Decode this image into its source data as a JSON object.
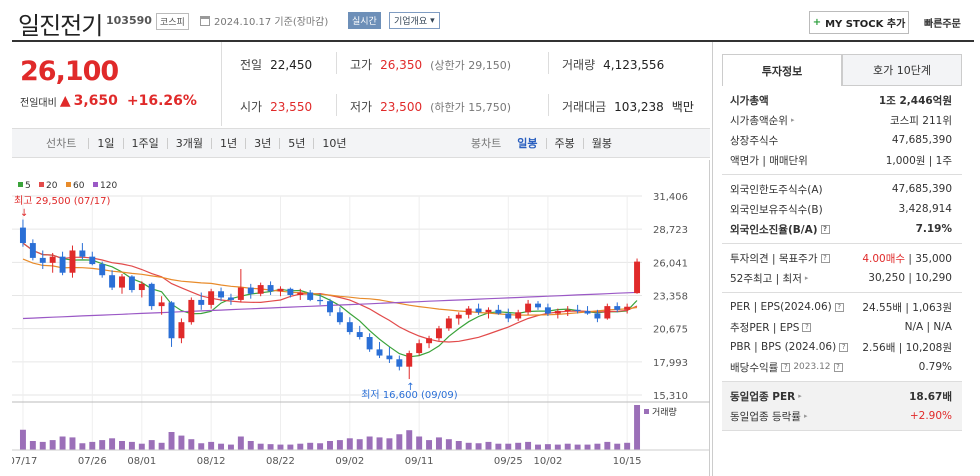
{
  "header": {
    "title": "일진전기",
    "code": "103590",
    "market": "코스피",
    "date": "2024.10.17 기준(장마감)",
    "realtime_label": "실시간",
    "overview_label": "기업개요",
    "mystock_label": "MY STOCK 추가",
    "quick_order_label": "빠른주문"
  },
  "price": {
    "current": "26,100",
    "change_label": "전일대비",
    "change": "3,650",
    "change_pct": "+16.26%"
  },
  "stats": {
    "prev_label": "전일",
    "prev": "22,450",
    "high_label": "고가",
    "high": "26,350",
    "upper_limit": "(상한가 29,150)",
    "volume_label": "거래량",
    "volume": "4,123,556",
    "open_label": "시가",
    "open": "23,550",
    "low_label": "저가",
    "low": "23,500",
    "lower_limit": "(하한가 15,750)",
    "amount_label": "거래대금",
    "amount": "103,238",
    "amount_unit": "백만"
  },
  "period_bar": {
    "line_label": "선차트",
    "line_items": [
      "1일",
      "1주일",
      "3개월",
      "1년",
      "3년",
      "5년",
      "10년"
    ],
    "candle_label": "봉차트",
    "candle_items": [
      "일봉",
      "주봉",
      "월봉"
    ],
    "candle_selected": "일봉"
  },
  "colors": {
    "up": "#e02a2a",
    "down": "#2a6fd6",
    "ma5": "#3aa33a",
    "ma20": "#e24b4b",
    "ma60": "#e88b2a",
    "ma120": "#9b59c6"
  },
  "chart_data": {
    "type": "candlestick",
    "legend": [
      "5",
      "20",
      "60",
      "120"
    ],
    "y_ticks": [
      "31,406",
      "28,723",
      "26,041",
      "23,358",
      "20,675",
      "17,993",
      "15,310"
    ],
    "ylim": [
      15310,
      31406
    ],
    "x_ticks": [
      "07/17",
      "07/26",
      "08/01",
      "08/12",
      "08/22",
      "09/02",
      "09/11",
      "09/25",
      "10/02",
      "10/15"
    ],
    "high_annotation": "최고 29,500 (07/17)",
    "low_annotation": "최저 16,600 (09/09)",
    "volume_label": "거래량",
    "candles": [
      [
        28850,
        29500,
        27300,
        27600
      ],
      [
        27600,
        27900,
        26200,
        26400
      ],
      [
        26400,
        27000,
        25500,
        26000
      ],
      [
        26000,
        26800,
        25200,
        26500
      ],
      [
        26500,
        26900,
        25000,
        25200
      ],
      [
        25200,
        27400,
        24800,
        27000
      ],
      [
        27000,
        27600,
        26300,
        26500
      ],
      [
        26500,
        26900,
        25800,
        25900
      ],
      [
        25900,
        26100,
        24800,
        25000
      ],
      [
        25000,
        25400,
        23800,
        24000
      ],
      [
        24000,
        25100,
        23500,
        24900
      ],
      [
        24900,
        25000,
        23600,
        23800
      ],
      [
        23800,
        24500,
        23200,
        24300
      ],
      [
        24300,
        24400,
        22200,
        22500
      ],
      [
        22500,
        23300,
        21800,
        22800
      ],
      [
        22800,
        22900,
        19200,
        19900
      ],
      [
        19900,
        21500,
        19500,
        21200
      ],
      [
        21200,
        23200,
        21000,
        23000
      ],
      [
        23000,
        23600,
        22200,
        22600
      ],
      [
        22600,
        23900,
        22300,
        23700
      ],
      [
        23700,
        24000,
        22900,
        23200
      ],
      [
        23200,
        23500,
        22600,
        23000
      ],
      [
        23000,
        25500,
        22800,
        24000
      ],
      [
        24000,
        24300,
        23100,
        23500
      ],
      [
        23500,
        24400,
        23300,
        24200
      ],
      [
        24200,
        24500,
        23400,
        23700
      ],
      [
        23700,
        24100,
        23300,
        23900
      ],
      [
        23900,
        24000,
        23200,
        23400
      ],
      [
        23400,
        23900,
        23000,
        23600
      ],
      [
        23600,
        23800,
        22900,
        23000
      ],
      [
        23000,
        23500,
        22600,
        22900
      ],
      [
        22900,
        23100,
        21700,
        22000
      ],
      [
        22000,
        22400,
        21000,
        21200
      ],
      [
        21200,
        21600,
        20200,
        20400
      ],
      [
        20400,
        20900,
        19800,
        20000
      ],
      [
        20000,
        20300,
        18800,
        19000
      ],
      [
        19000,
        19600,
        18300,
        18500
      ],
      [
        18500,
        19200,
        17900,
        18200
      ],
      [
        18200,
        18500,
        17300,
        17600
      ],
      [
        17600,
        18900,
        16600,
        18700
      ],
      [
        18700,
        19800,
        18500,
        19500
      ],
      [
        19500,
        20100,
        19100,
        19900
      ],
      [
        19900,
        20900,
        19700,
        20700
      ],
      [
        20700,
        21700,
        20500,
        21500
      ],
      [
        21500,
        22000,
        21000,
        21800
      ],
      [
        21800,
        22500,
        21500,
        22300
      ],
      [
        22300,
        22700,
        21800,
        22000
      ],
      [
        22000,
        22400,
        21500,
        22200
      ],
      [
        22200,
        22600,
        21800,
        21900
      ],
      [
        21900,
        22300,
        21200,
        21500
      ],
      [
        21500,
        22200,
        21300,
        22000
      ],
      [
        22000,
        23000,
        21800,
        22700
      ],
      [
        22700,
        22900,
        22200,
        22400
      ],
      [
        22400,
        22700,
        21700,
        21900
      ],
      [
        21900,
        22300,
        21500,
        22100
      ],
      [
        22100,
        22500,
        21700,
        22200
      ],
      [
        22200,
        22600,
        21900,
        22100
      ],
      [
        22100,
        22500,
        21800,
        21900
      ],
      [
        21900,
        22200,
        21200,
        21500
      ],
      [
        21500,
        22700,
        21400,
        22500
      ],
      [
        22500,
        22800,
        22000,
        22200
      ],
      [
        22200,
        22700,
        21900,
        22450
      ],
      [
        23550,
        26350,
        23500,
        26100
      ]
    ],
    "volumes": [
      45,
      20,
      18,
      22,
      30,
      28,
      15,
      18,
      22,
      26,
      20,
      18,
      14,
      22,
      16,
      40,
      32,
      24,
      15,
      18,
      14,
      12,
      30,
      20,
      14,
      13,
      12,
      12,
      14,
      16,
      15,
      20,
      22,
      26,
      24,
      30,
      28,
      26,
      35,
      44,
      30,
      22,
      28,
      24,
      20,
      16,
      15,
      18,
      14,
      14,
      16,
      18,
      12,
      13,
      12,
      14,
      12,
      12,
      14,
      18,
      14,
      16,
      100
    ]
  },
  "panel": {
    "tab_invest": "투자정보",
    "tab_order": "호가 10단계",
    "market_cap_label": "시가총액",
    "market_cap": "1조 2,446억원",
    "cap_rank_label": "시가총액순위",
    "cap_rank": "코스피 211위",
    "shares_label": "상장주식수",
    "shares": "47,685,390",
    "par_label": "액면가 | 매매단위",
    "par": "1,000원 | 1주",
    "foreign_limit_label": "외국인한도주식수(A)",
    "foreign_limit": "47,685,390",
    "foreign_hold_label": "외국인보유주식수(B)",
    "foreign_hold": "3,428,914",
    "foreign_ratio_label": "외국인소진율(B/A)",
    "foreign_ratio": "7.19%",
    "opinion_label": "투자의견 | 목표주가",
    "opinion": "4.00매수",
    "target": "35,000",
    "w52_label": "52주최고 | 최저",
    "w52": "30,250 | 10,290",
    "per_label": "PER | EPS(2024.06)",
    "per": "24.55배 | 1,063원",
    "est_per_label": "추정PER | EPS",
    "est_per": "N/A | N/A",
    "pbr_label": "PBR | BPS (2024.06)",
    "pbr": "2.56배 | 10,208원",
    "div_label": "배당수익률",
    "div_date": "2023.12",
    "div": "0.79%",
    "sector_per_label": "동일업종 PER",
    "sector_per": "18.67배",
    "sector_rate_label": "동일업종 등락률",
    "sector_rate": "+2.90%"
  }
}
